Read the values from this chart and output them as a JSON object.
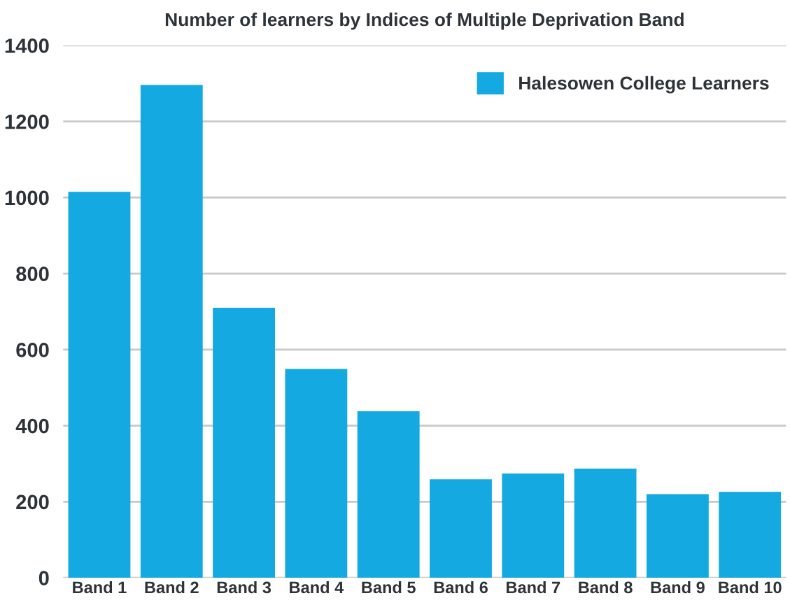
{
  "chart_data": {
    "type": "bar",
    "title": "Number of learners by Indices of Multiple Deprivation Band",
    "categories": [
      "Band 1",
      "Band 2",
      "Band 3",
      "Band 4",
      "Band 5",
      "Band 6",
      "Band 7",
      "Band 8",
      "Band 9",
      "Band 10"
    ],
    "series": [
      {
        "name": "Halesowen College Learners",
        "color": "#14a9e0",
        "values": [
          1015,
          1296,
          710,
          549,
          438,
          259,
          274,
          287,
          220,
          226
        ]
      }
    ],
    "ylim": [
      0,
      1400
    ],
    "yticks": [
      0,
      200,
      400,
      600,
      800,
      1000,
      1200,
      1400
    ],
    "grid": "y",
    "legend": "top right"
  }
}
